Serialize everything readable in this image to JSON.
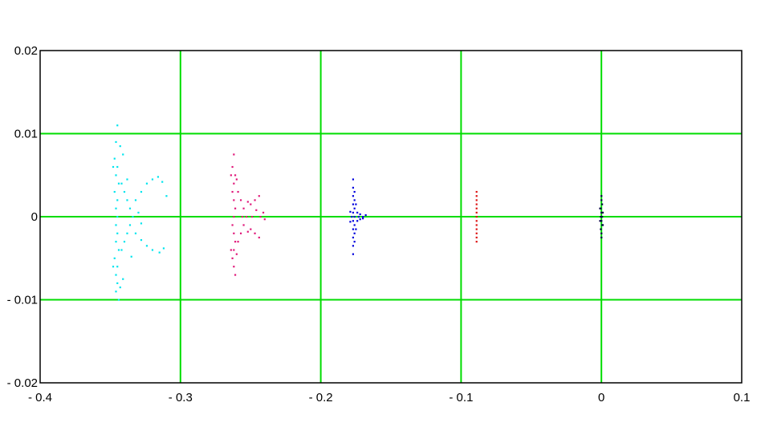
{
  "chart_data": {
    "type": "scatter",
    "title": "",
    "xlabel": "",
    "ylabel": "",
    "xlim": [
      -0.4,
      0.1
    ],
    "ylim": [
      -0.02,
      0.02
    ],
    "grid": true,
    "grid_color": "#00dd00",
    "x_ticks": [
      -0.4,
      -0.3,
      -0.2,
      -0.1,
      0,
      0.1
    ],
    "x_tick_labels": [
      "- 0.4",
      "- 0.3",
      "- 0.2",
      "- 0.1",
      "0",
      "0.1"
    ],
    "y_ticks": [
      0.02,
      0.01,
      0,
      -0.01,
      -0.02
    ],
    "y_tick_labels": [
      "0.02",
      "0.01",
      "0",
      "- 0.01",
      "- 0.02"
    ],
    "series": [
      {
        "color": "#00e5ee",
        "values": [
          [
            -0.345,
            0.011
          ],
          [
            -0.346,
            0.009
          ],
          [
            -0.347,
            0.007
          ],
          [
            -0.345,
            0.006
          ],
          [
            -0.346,
            0.005
          ],
          [
            -0.344,
            0.004
          ],
          [
            -0.347,
            0.003
          ],
          [
            -0.345,
            0.002
          ],
          [
            -0.346,
            0.001
          ],
          [
            -0.345,
            0.0
          ],
          [
            -0.346,
            -0.001
          ],
          [
            -0.345,
            -0.002
          ],
          [
            -0.346,
            -0.003
          ],
          [
            -0.344,
            -0.004
          ],
          [
            -0.347,
            -0.005
          ],
          [
            -0.345,
            -0.006
          ],
          [
            -0.346,
            -0.007
          ],
          [
            -0.345,
            -0.008
          ],
          [
            -0.346,
            -0.009
          ],
          [
            -0.344,
            -0.01
          ],
          [
            -0.342,
            0.004
          ],
          [
            -0.34,
            0.003
          ],
          [
            -0.338,
            0.002
          ],
          [
            -0.336,
            0.001
          ],
          [
            -0.334,
            0.0
          ],
          [
            -0.336,
            -0.001
          ],
          [
            -0.338,
            -0.002
          ],
          [
            -0.34,
            -0.003
          ],
          [
            -0.342,
            -0.004
          ],
          [
            -0.332,
            0.002
          ],
          [
            -0.328,
            0.003
          ],
          [
            -0.324,
            0.004
          ],
          [
            -0.32,
            0.0045
          ],
          [
            -0.316,
            0.0048
          ],
          [
            -0.313,
            0.0042
          ],
          [
            -0.332,
            -0.002
          ],
          [
            -0.328,
            -0.0028
          ],
          [
            -0.324,
            -0.0035
          ],
          [
            -0.32,
            -0.004
          ],
          [
            -0.315,
            -0.0043
          ],
          [
            -0.312,
            -0.0038
          ],
          [
            -0.31,
            0.0025
          ],
          [
            -0.33,
            0.0005
          ],
          [
            -0.328,
            -0.0008
          ],
          [
            -0.343,
            0.0085
          ],
          [
            -0.343,
            -0.0085
          ],
          [
            -0.348,
            0.006
          ],
          [
            -0.348,
            -0.006
          ],
          [
            -0.338,
            0.0045
          ],
          [
            -0.335,
            -0.0048
          ],
          [
            -0.341,
            0.0075
          ],
          [
            -0.341,
            -0.0075
          ]
        ]
      },
      {
        "color": "#e0197a",
        "values": [
          [
            -0.262,
            0.0075
          ],
          [
            -0.263,
            0.006
          ],
          [
            -0.261,
            0.005
          ],
          [
            -0.262,
            0.004
          ],
          [
            -0.263,
            0.003
          ],
          [
            -0.262,
            0.002
          ],
          [
            -0.261,
            0.001
          ],
          [
            -0.262,
            0.0
          ],
          [
            -0.263,
            -0.001
          ],
          [
            -0.262,
            -0.002
          ],
          [
            -0.261,
            -0.003
          ],
          [
            -0.262,
            -0.004
          ],
          [
            -0.263,
            -0.005
          ],
          [
            -0.262,
            -0.006
          ],
          [
            -0.261,
            -0.007
          ],
          [
            -0.259,
            0.003
          ],
          [
            -0.257,
            0.002
          ],
          [
            -0.255,
            0.001
          ],
          [
            -0.253,
            0.0
          ],
          [
            -0.255,
            -0.001
          ],
          [
            -0.257,
            -0.002
          ],
          [
            -0.259,
            -0.003
          ],
          [
            -0.25,
            0.0015
          ],
          [
            -0.247,
            0.002
          ],
          [
            -0.244,
            0.0025
          ],
          [
            -0.25,
            -0.0015
          ],
          [
            -0.247,
            -0.002
          ],
          [
            -0.244,
            -0.0025
          ],
          [
            -0.241,
            0.0005
          ],
          [
            -0.24,
            -0.0003
          ],
          [
            -0.243,
            0.0
          ],
          [
            -0.246,
            0.0008
          ],
          [
            -0.252,
            0.0018
          ],
          [
            -0.252,
            -0.0018
          ],
          [
            -0.264,
            0.005
          ],
          [
            -0.264,
            -0.004
          ],
          [
            -0.26,
            0.0045
          ],
          [
            -0.26,
            -0.0045
          ],
          [
            -0.256,
            0.0
          ],
          [
            -0.249,
            0.0
          ]
        ]
      },
      {
        "color": "#0000dd",
        "values": [
          [
            -0.177,
            0.0045
          ],
          [
            -0.177,
            0.0035
          ],
          [
            -0.176,
            0.003
          ],
          [
            -0.177,
            0.0025
          ],
          [
            -0.176,
            0.002
          ],
          [
            -0.177,
            0.0015
          ],
          [
            -0.176,
            0.001
          ],
          [
            -0.177,
            0.0005
          ],
          [
            -0.176,
            0.0
          ],
          [
            -0.177,
            -0.0005
          ],
          [
            -0.176,
            -0.001
          ],
          [
            -0.177,
            -0.0015
          ],
          [
            -0.176,
            -0.002
          ],
          [
            -0.177,
            -0.0025
          ],
          [
            -0.176,
            -0.003
          ],
          [
            -0.177,
            -0.0035
          ],
          [
            -0.177,
            -0.0045
          ],
          [
            -0.174,
            0.0005
          ],
          [
            -0.172,
            0.0003
          ],
          [
            -0.17,
            0.0
          ],
          [
            -0.168,
            0.0002
          ],
          [
            -0.174,
            -0.0005
          ],
          [
            -0.172,
            -0.0003
          ],
          [
            -0.17,
            -0.0002
          ],
          [
            -0.179,
            0.0006
          ],
          [
            -0.179,
            -0.0006
          ],
          [
            -0.175,
            0.0015
          ],
          [
            -0.175,
            -0.0015
          ],
          [
            -0.178,
            0.0
          ],
          [
            -0.173,
            0.0
          ]
        ]
      },
      {
        "color": "#dd1111",
        "values": [
          [
            -0.089,
            0.003
          ],
          [
            -0.089,
            0.0025
          ],
          [
            -0.089,
            0.002
          ],
          [
            -0.089,
            0.0015
          ],
          [
            -0.089,
            0.001
          ],
          [
            -0.089,
            0.0005
          ],
          [
            -0.089,
            0.0
          ],
          [
            -0.089,
            -0.0005
          ],
          [
            -0.089,
            -0.001
          ],
          [
            -0.089,
            -0.0015
          ],
          [
            -0.089,
            -0.002
          ],
          [
            -0.089,
            -0.0025
          ],
          [
            -0.089,
            -0.003
          ]
        ]
      },
      {
        "color": "#000044",
        "values": [
          [
            0.0,
            0.0025
          ],
          [
            0.0,
            0.002
          ],
          [
            0.0005,
            0.0015
          ],
          [
            -0.0005,
            0.001
          ],
          [
            0.0,
            0.0005
          ],
          [
            0.0005,
            0.0
          ],
          [
            -0.0005,
            0.0
          ],
          [
            0.0,
            -0.0005
          ],
          [
            0.0005,
            -0.001
          ],
          [
            -0.0005,
            -0.0015
          ],
          [
            0.0,
            -0.002
          ],
          [
            0.0,
            -0.0025
          ],
          [
            0.001,
            0.0005
          ],
          [
            -0.001,
            -0.0005
          ],
          [
            0.001,
            -0.001
          ],
          [
            -0.001,
            0.001
          ]
        ]
      }
    ]
  }
}
